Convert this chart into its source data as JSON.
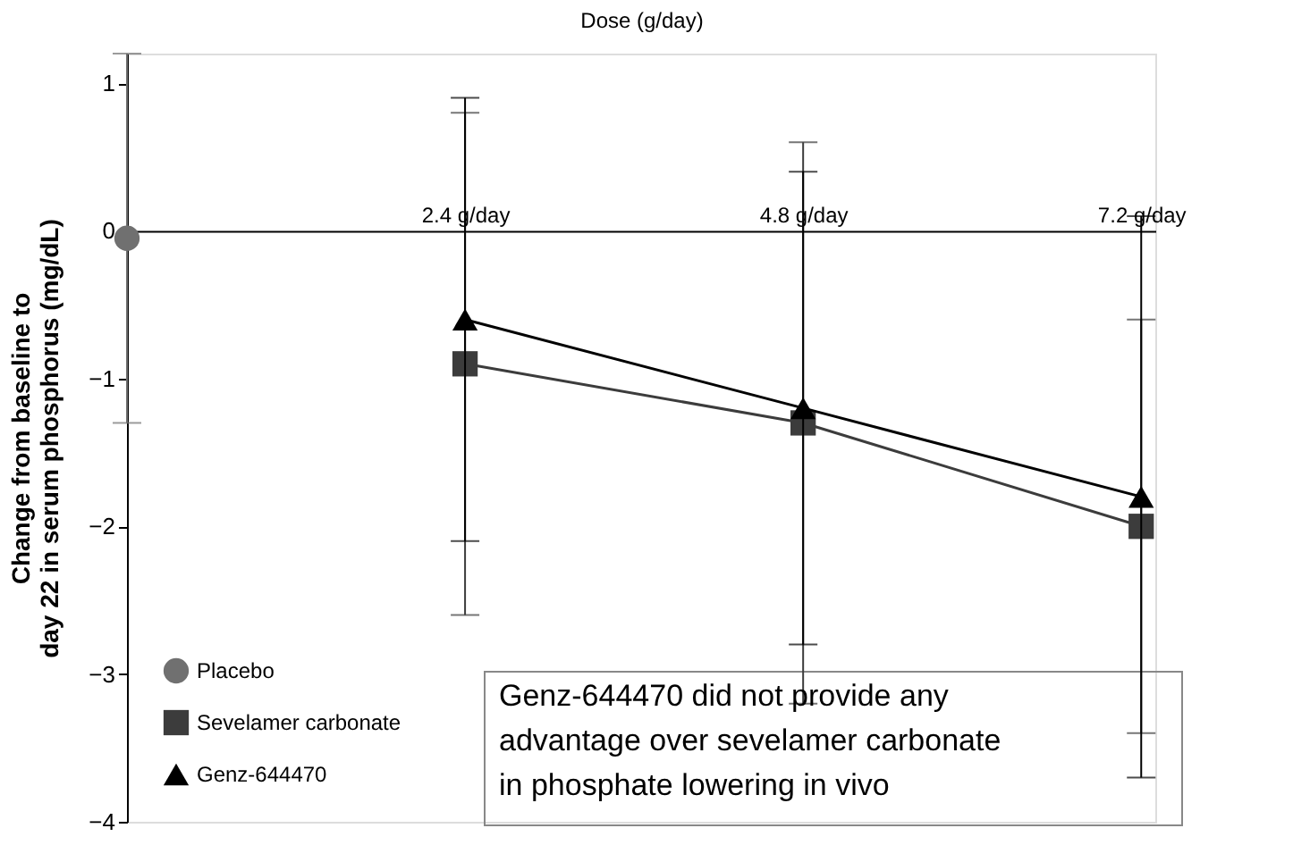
{
  "chart_data": {
    "type": "line",
    "xlabel": "Dose (g/day)",
    "ylabel": "Change from baseline to\nday 22 in serum phosphorus (mg/dL)",
    "x": [
      2.4,
      4.8,
      7.2
    ],
    "xlim": [
      0,
      7.3
    ],
    "xticks": [
      {
        "value": 2.4,
        "label": "2.4 g/day"
      },
      {
        "value": 4.8,
        "label": "4.8 g/day"
      },
      {
        "value": 7.2,
        "label": "7.2 g/day"
      }
    ],
    "ylim": [
      -4,
      1.2
    ],
    "yticks": [
      -4,
      -3,
      -2,
      -1,
      0,
      1
    ],
    "series": [
      {
        "name": "Placebo",
        "color": "#707070",
        "marker": "circle",
        "x": [
          0
        ],
        "values": [
          -0.05
        ],
        "errors": [
          [
            -1.3,
            1.2
          ]
        ]
      },
      {
        "name": "Sevelamer carbonate",
        "color": "#3c3c3c",
        "marker": "square",
        "values": [
          -0.9,
          -1.3,
          -2.0
        ],
        "errors": [
          [
            -2.6,
            0.8
          ],
          [
            -3.2,
            0.6
          ],
          [
            -3.4,
            -0.6
          ]
        ]
      },
      {
        "name": "Genz-644470",
        "color": "#000000",
        "marker": "triangle",
        "values": [
          -0.6,
          -1.2,
          -1.8
        ],
        "errors": [
          [
            -2.1,
            0.9
          ],
          [
            -2.8,
            0.4
          ],
          [
            -3.7,
            0.1
          ]
        ]
      }
    ],
    "annotations": [
      "Genz-644470 did not provide any\nadvantage over sevelamer carbonate\nin phosphate lowering in vivo"
    ],
    "legend": "bottom left",
    "grid": false,
    "line_style": "solid"
  }
}
